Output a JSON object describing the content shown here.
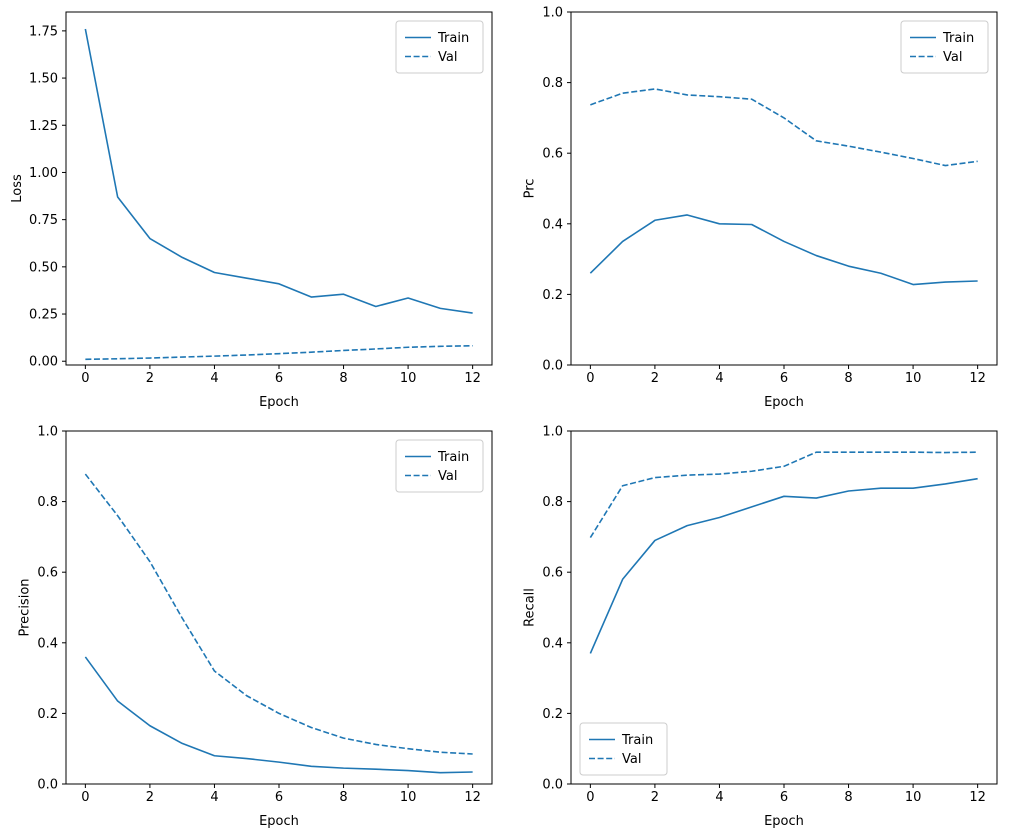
{
  "figure": {
    "background": "#ffffff",
    "line_color": "#1f77b4",
    "legend_border_color": "#cccccc"
  },
  "chart_data": [
    {
      "type": "line",
      "title": "",
      "xlabel": "Epoch",
      "ylabel": "Loss",
      "x": [
        0,
        1,
        2,
        3,
        4,
        5,
        6,
        7,
        8,
        9,
        10,
        11,
        12
      ],
      "xlim": [
        -0.6,
        12.6
      ],
      "ylim": [
        -0.02,
        1.85
      ],
      "xticks": [
        0,
        2,
        4,
        6,
        8,
        10,
        12
      ],
      "xtick_labels": [
        "0",
        "2",
        "4",
        "6",
        "8",
        "10",
        "12"
      ],
      "yticks": [
        0.0,
        0.25,
        0.5,
        0.75,
        1.0,
        1.25,
        1.5,
        1.75
      ],
      "ytick_labels": [
        "0.00",
        "0.25",
        "0.50",
        "0.75",
        "1.00",
        "1.25",
        "1.50",
        "1.75"
      ],
      "grid": false,
      "legend": "upper right",
      "series": [
        {
          "name": "Train",
          "dash": "solid",
          "color": "#1f77b4",
          "values": [
            1.76,
            0.87,
            0.65,
            0.55,
            0.47,
            0.44,
            0.41,
            0.34,
            0.355,
            0.29,
            0.335,
            0.28,
            0.255
          ]
        },
        {
          "name": "Val",
          "dash": "dashed",
          "color": "#1f77b4",
          "values": [
            0.01,
            0.013,
            0.017,
            0.022,
            0.027,
            0.033,
            0.04,
            0.048,
            0.057,
            0.065,
            0.074,
            0.079,
            0.082
          ]
        }
      ]
    },
    {
      "type": "line",
      "title": "",
      "xlabel": "Epoch",
      "ylabel": "Prc",
      "x": [
        0,
        1,
        2,
        3,
        4,
        5,
        6,
        7,
        8,
        9,
        10,
        11,
        12
      ],
      "xlim": [
        -0.6,
        12.6
      ],
      "ylim": [
        0.0,
        1.0
      ],
      "xticks": [
        0,
        2,
        4,
        6,
        8,
        10,
        12
      ],
      "xtick_labels": [
        "0",
        "2",
        "4",
        "6",
        "8",
        "10",
        "12"
      ],
      "yticks": [
        0.0,
        0.2,
        0.4,
        0.6,
        0.8,
        1.0
      ],
      "ytick_labels": [
        "0.0",
        "0.2",
        "0.4",
        "0.6",
        "0.8",
        "1.0"
      ],
      "grid": false,
      "legend": "upper right",
      "series": [
        {
          "name": "Train",
          "dash": "solid",
          "color": "#1f77b4",
          "values": [
            0.26,
            0.35,
            0.41,
            0.425,
            0.4,
            0.398,
            0.35,
            0.31,
            0.28,
            0.26,
            0.228,
            0.235,
            0.238
          ]
        },
        {
          "name": "Val",
          "dash": "dashed",
          "color": "#1f77b4",
          "values": [
            0.737,
            0.77,
            0.782,
            0.765,
            0.76,
            0.753,
            0.7,
            0.635,
            0.62,
            0.603,
            0.585,
            0.565,
            0.577
          ]
        }
      ]
    },
    {
      "type": "line",
      "title": "",
      "xlabel": "Epoch",
      "ylabel": "Precision",
      "x": [
        0,
        1,
        2,
        3,
        4,
        5,
        6,
        7,
        8,
        9,
        10,
        11,
        12
      ],
      "xlim": [
        -0.6,
        12.6
      ],
      "ylim": [
        0.0,
        1.0
      ],
      "xticks": [
        0,
        2,
        4,
        6,
        8,
        10,
        12
      ],
      "xtick_labels": [
        "0",
        "2",
        "4",
        "6",
        "8",
        "10",
        "12"
      ],
      "yticks": [
        0.0,
        0.2,
        0.4,
        0.6,
        0.8,
        1.0
      ],
      "ytick_labels": [
        "0.0",
        "0.2",
        "0.4",
        "0.6",
        "0.8",
        "1.0"
      ],
      "grid": false,
      "legend": "upper right",
      "series": [
        {
          "name": "Train",
          "dash": "solid",
          "color": "#1f77b4",
          "values": [
            0.36,
            0.235,
            0.165,
            0.115,
            0.08,
            0.072,
            0.062,
            0.05,
            0.045,
            0.042,
            0.038,
            0.032,
            0.034
          ]
        },
        {
          "name": "Val",
          "dash": "dashed",
          "color": "#1f77b4",
          "values": [
            0.878,
            0.76,
            0.63,
            0.47,
            0.32,
            0.25,
            0.2,
            0.16,
            0.13,
            0.112,
            0.1,
            0.09,
            0.085
          ]
        }
      ]
    },
    {
      "type": "line",
      "title": "",
      "xlabel": "Epoch",
      "ylabel": "Recall",
      "x": [
        0,
        1,
        2,
        3,
        4,
        5,
        6,
        7,
        8,
        9,
        10,
        11,
        12
      ],
      "xlim": [
        -0.6,
        12.6
      ],
      "ylim": [
        0.0,
        1.0
      ],
      "xticks": [
        0,
        2,
        4,
        6,
        8,
        10,
        12
      ],
      "xtick_labels": [
        "0",
        "2",
        "4",
        "6",
        "8",
        "10",
        "12"
      ],
      "yticks": [
        0.0,
        0.2,
        0.4,
        0.6,
        0.8,
        1.0
      ],
      "ytick_labels": [
        "0.0",
        "0.2",
        "0.4",
        "0.6",
        "0.8",
        "1.0"
      ],
      "grid": false,
      "legend": "lower left",
      "series": [
        {
          "name": "Train",
          "dash": "solid",
          "color": "#1f77b4",
          "values": [
            0.37,
            0.58,
            0.69,
            0.732,
            0.755,
            0.785,
            0.815,
            0.81,
            0.83,
            0.838,
            0.838,
            0.85,
            0.865
          ]
        },
        {
          "name": "Val",
          "dash": "dashed",
          "color": "#1f77b4",
          "values": [
            0.698,
            0.845,
            0.868,
            0.875,
            0.878,
            0.886,
            0.9,
            0.94,
            0.94,
            0.94,
            0.94,
            0.939,
            0.94
          ]
        }
      ]
    }
  ]
}
